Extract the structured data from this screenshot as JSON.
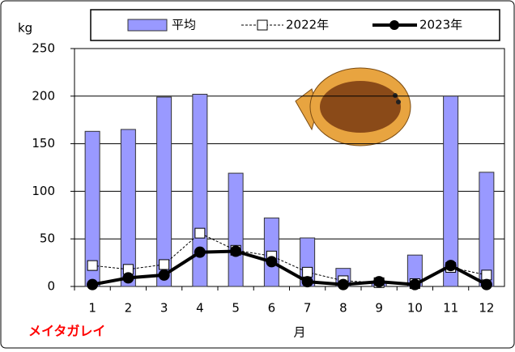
{
  "chart_data": {
    "type": "bar",
    "y_label": "kg",
    "x_label": "月",
    "annotation": "メイタガレイ",
    "categories": [
      "1",
      "2",
      "3",
      "4",
      "5",
      "6",
      "7",
      "8",
      "9",
      "10",
      "11",
      "12"
    ],
    "series": [
      {
        "name": "平均",
        "type": "bar",
        "color": "#9999ff",
        "values": [
          163,
          165,
          199,
          202,
          119,
          72,
          51,
          19,
          5,
          33,
          200,
          120
        ]
      },
      {
        "name": "2022年",
        "type": "line",
        "color": "#000000",
        "values": [
          22,
          18,
          23,
          56,
          38,
          32,
          15,
          6,
          4,
          3,
          20,
          12
        ]
      },
      {
        "name": "2023年",
        "type": "line",
        "color": "#000000",
        "values": [
          2,
          9,
          12,
          36,
          37,
          26,
          5,
          2,
          5,
          2,
          22,
          2
        ]
      }
    ],
    "ylim": [
      0,
      250
    ],
    "yticks": [
      0,
      50,
      100,
      150,
      200,
      250
    ],
    "grid": true
  }
}
